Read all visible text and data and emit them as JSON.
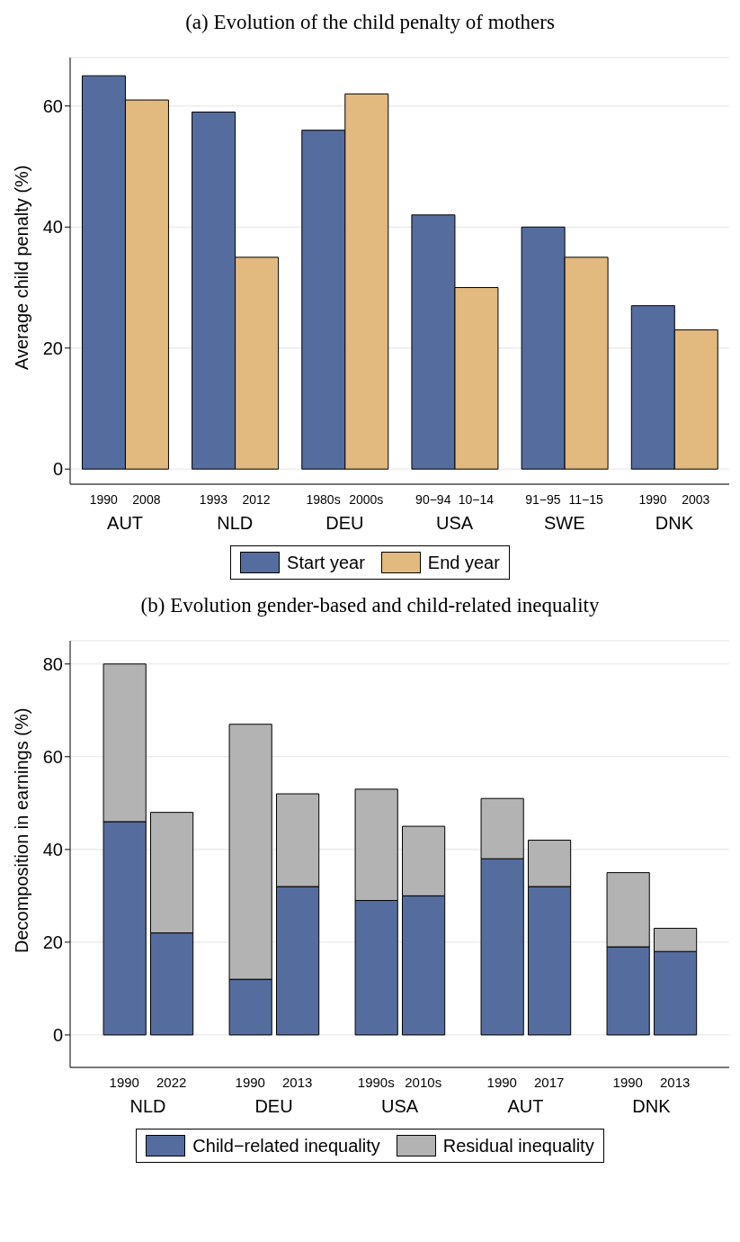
{
  "chart_data": [
    {
      "type": "bar",
      "title": "(a) Evolution of the child penalty of mothers",
      "ylabel": "Average child penalty (%)",
      "categories": [
        "AUT",
        "NLD",
        "DEU",
        "USA",
        "SWE",
        "DNK"
      ],
      "series": [
        {
          "name": "Start year",
          "color": "#556d9e",
          "values": [
            65,
            59,
            56,
            42,
            40,
            27
          ]
        },
        {
          "name": "End year",
          "color": "#e2b97f",
          "values": [
            61,
            35,
            62,
            30,
            35,
            23
          ]
        }
      ],
      "annotations": [
        "1990",
        "2008",
        "1993",
        "2012",
        "1980s",
        "2000s",
        "90−94",
        "10−14",
        "91−95",
        "11−15",
        "1990",
        "2003"
      ],
      "ylim": [
        -2.5,
        68
      ],
      "yticks": [
        0,
        20,
        40,
        60
      ],
      "grid": "y",
      "legend": "bottom"
    },
    {
      "type": "bar",
      "title": "(b) Evolution gender-based and child-related inequality",
      "ylabel": "Decomposition in earnings (%)",
      "categories": [
        "1990",
        "2022",
        "1990",
        "2013",
        "1990s",
        "2010s",
        "1990",
        "2017",
        "1990",
        "2013"
      ],
      "series": [
        {
          "name": "Child−related inequality",
          "color": "#556d9e",
          "values": [
            46,
            22,
            12,
            32,
            29,
            30,
            38,
            32,
            19,
            18
          ]
        },
        {
          "name": "Residual inequality",
          "color": "#b3b3b3",
          "values": [
            34,
            26,
            55,
            20,
            24,
            15,
            13,
            10,
            16,
            5
          ]
        }
      ],
      "stacked": true,
      "annotations": [
        "NLD",
        "DEU",
        "USA",
        "AUT",
        "DNK"
      ],
      "ylim": [
        -7,
        85
      ],
      "yticks": [
        0,
        20,
        40,
        60,
        80
      ],
      "grid": "y",
      "legend": "bottom"
    }
  ]
}
